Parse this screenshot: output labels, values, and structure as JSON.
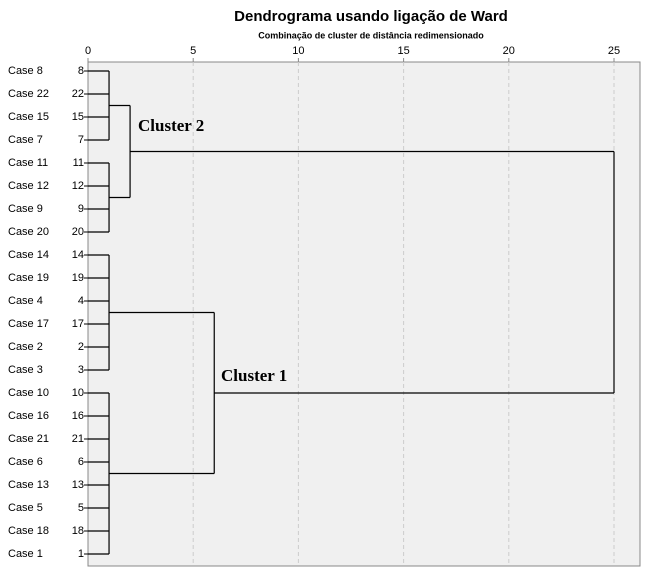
{
  "chart_data": {
    "type": "dendrogram",
    "title": "Dendrograma usando ligação de Ward",
    "subtitle": "Combinação de cluster de distância redimensionado",
    "xlim": [
      0,
      25
    ],
    "xticks": [
      0,
      5,
      10,
      15,
      20,
      25
    ],
    "grid": true,
    "leaves": [
      {
        "name": "Case 8",
        "id": "8"
      },
      {
        "name": "Case 22",
        "id": "22"
      },
      {
        "name": "Case 15",
        "id": "15"
      },
      {
        "name": "Case 7",
        "id": "7"
      },
      {
        "name": "Case 11",
        "id": "11"
      },
      {
        "name": "Case 12",
        "id": "12"
      },
      {
        "name": "Case 9",
        "id": "9"
      },
      {
        "name": "Case 20",
        "id": "20"
      },
      {
        "name": "Case 14",
        "id": "14"
      },
      {
        "name": "Case 19",
        "id": "19"
      },
      {
        "name": "Case 4",
        "id": "4"
      },
      {
        "name": "Case 17",
        "id": "17"
      },
      {
        "name": "Case 2",
        "id": "2"
      },
      {
        "name": "Case 3",
        "id": "3"
      },
      {
        "name": "Case 10",
        "id": "10"
      },
      {
        "name": "Case 16",
        "id": "16"
      },
      {
        "name": "Case 21",
        "id": "21"
      },
      {
        "name": "Case 6",
        "id": "6"
      },
      {
        "name": "Case 13",
        "id": "13"
      },
      {
        "name": "Case 5",
        "id": "5"
      },
      {
        "name": "Case 18",
        "id": "18"
      },
      {
        "name": "Case 1",
        "id": "1"
      }
    ],
    "merges": [
      {
        "children": [
          0,
          1,
          2,
          3
        ],
        "height": 1
      },
      {
        "children": [
          4,
          5,
          6,
          7
        ],
        "height": 1
      },
      {
        "children": [
          22,
          23
        ],
        "height": 2
      },
      {
        "children": [
          8,
          9,
          10,
          11,
          12,
          13
        ],
        "height": 1
      },
      {
        "children": [
          14,
          15,
          16,
          17,
          18,
          19,
          20,
          21
        ],
        "height": 1
      },
      {
        "children": [
          25,
          26
        ],
        "height": 6
      },
      {
        "children": [
          24,
          27
        ],
        "height": 25
      }
    ],
    "annotations": [
      {
        "text": "Cluster 2"
      },
      {
        "text": "Cluster 1"
      }
    ]
  }
}
